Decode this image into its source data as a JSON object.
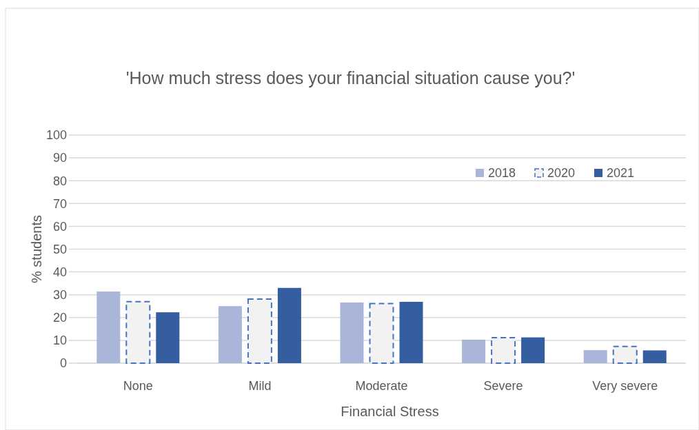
{
  "chart_data": {
    "type": "bar",
    "title": "'How much stress does your financial situation cause you?'",
    "xlabel": "Financial Stress",
    "ylabel": "% students",
    "categories": [
      "None",
      "Mild",
      "Moderate",
      "Severe",
      "Very severe"
    ],
    "series": [
      {
        "name": "2018",
        "color": "#a9b6d9",
        "values": [
          31.4,
          25.0,
          26.6,
          10.3,
          5.7
        ]
      },
      {
        "name": "2020",
        "color": "#f2f2f2",
        "line_style": "dashed",
        "values": [
          27.0,
          28.1,
          26.1,
          11.2,
          7.3
        ]
      },
      {
        "name": "2021",
        "color": "#355ea1",
        "values": [
          22.3,
          33.0,
          26.9,
          11.3,
          5.6
        ]
      }
    ],
    "ylim": [
      0,
      100
    ],
    "yticks": [
      0,
      10,
      20,
      30,
      40,
      50,
      60,
      70,
      80,
      90,
      100
    ],
    "grid": "y",
    "legend": "top right"
  }
}
